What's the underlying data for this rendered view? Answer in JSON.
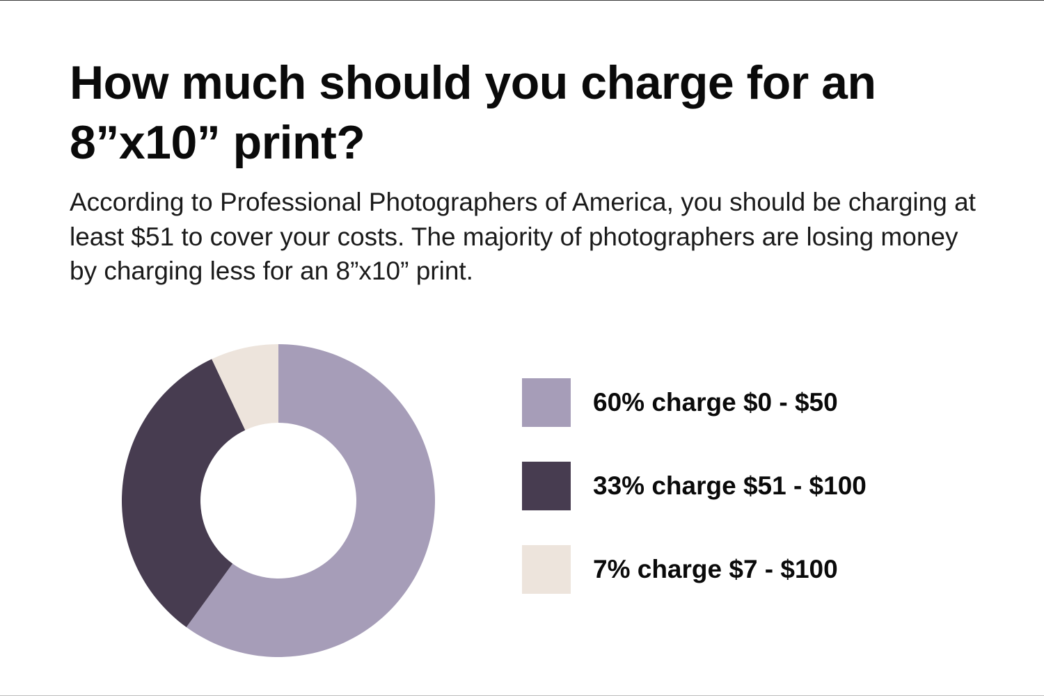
{
  "title": "How much should you charge for an 8”x10” print?",
  "subtitle": "According to Professional Photographers of America, you should be charging at least $51 to cover your costs. The majority of photographers are losing money by charging less for an 8”x10” print.",
  "chart_data": {
    "type": "pie",
    "variant": "donut",
    "title": "How much should you charge for an 8”x10” print?",
    "categories": [
      "60% charge $0 - $50",
      "33% charge $51 - $100",
      "7% charge $7 - $100"
    ],
    "values": [
      60,
      33,
      7
    ],
    "unit": "%",
    "colors": [
      "#a69db8",
      "#473c50",
      "#ede4dc"
    ],
    "legend_position": "right",
    "start_angle": "top",
    "direction": "clockwise"
  },
  "legend": {
    "items": [
      {
        "label": "60% charge $0 - $50",
        "color": "#a69db8"
      },
      {
        "label": "33% charge $51 - $100",
        "color": "#473c50"
      },
      {
        "label": "7% charge $7 - $100",
        "color": "#ede4dc"
      }
    ]
  }
}
